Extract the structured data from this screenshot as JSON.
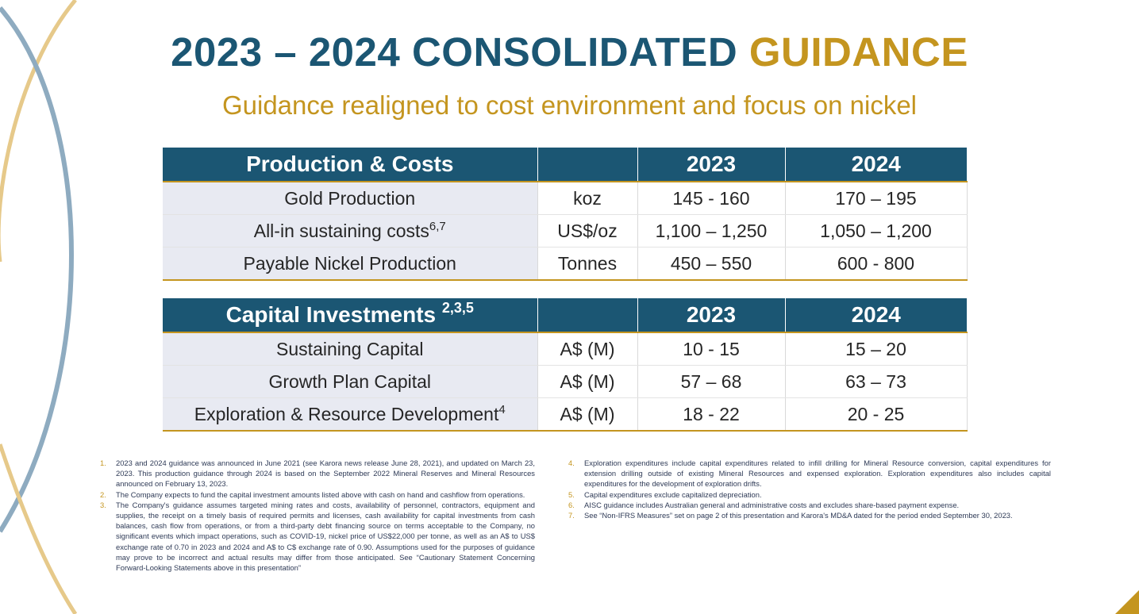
{
  "title": {
    "part1": "2023 – 2024 CONSOLIDATED ",
    "part2": "GUIDANCE"
  },
  "subtitle": "Guidance realigned to cost environment and focus on nickel",
  "production_table": {
    "header": {
      "label": "Production & Costs",
      "unit": "",
      "y2023": "2023",
      "y2024": "2024"
    },
    "rows": [
      {
        "label": "Gold Production",
        "sup": "",
        "unit": "koz",
        "y2023": "145 - 160",
        "y2024": "170 – 195"
      },
      {
        "label": "All-in sustaining costs",
        "sup": "6,7",
        "unit": "US$/oz",
        "y2023": "1,100 – 1,250",
        "y2024": "1,050 – 1,200"
      },
      {
        "label": "Payable Nickel Production",
        "sup": "",
        "unit": "Tonnes",
        "y2023": "450 – 550",
        "y2024": "600 - 800"
      }
    ]
  },
  "capital_table": {
    "header": {
      "label": "Capital Investments ",
      "sup": "2,3,5",
      "unit": "",
      "y2023": "2023",
      "y2024": "2024"
    },
    "rows": [
      {
        "label": "Sustaining Capital",
        "sup": "",
        "unit": "A$ (M)",
        "y2023": "10 - 15",
        "y2024": "15 – 20"
      },
      {
        "label": "Growth Plan Capital",
        "sup": "",
        "unit": "A$ (M)",
        "y2023": "57 – 68",
        "y2024": "63 – 73"
      },
      {
        "label": "Exploration & Resource Development",
        "sup": "4",
        "unit": "A$ (M)",
        "y2023": "18 - 22",
        "y2024": "20 - 25"
      }
    ]
  },
  "footnotes_left": [
    {
      "num": "1.",
      "text": "2023 and 2024 guidance was announced in June 2021 (see Karora news release June 28, 2021), and updated on March 23, 2023. This production guidance through 2024 is based on the September 2022 Mineral Reserves and Mineral Resources announced on February 13, 2023."
    },
    {
      "num": "2.",
      "text": "The Company expects to fund the capital investment amounts listed above with cash on hand and cashflow from operations."
    },
    {
      "num": "3.",
      "text": "The Company's guidance assumes targeted mining rates and costs, availability of personnel, contractors, equipment and supplies, the receipt on a timely basis of required permits and licenses, cash availability for capital investments from cash balances, cash flow from operations, or from a third-party debt financing source on terms acceptable to the Company, no significant events which impact operations, such as COVID-19, nickel price of US$22,000 per tonne, as well as an A$ to US$ exchange rate of 0.70 in 2023 and 2024 and A$ to C$ exchange rate of 0.90. Assumptions used for the purposes of guidance may prove to be incorrect and actual results may differ from those anticipated. See “Cautionary Statement Concerning Forward-Looking Statements above in this presentation”"
    }
  ],
  "footnotes_right": [
    {
      "num": "4.",
      "text": "Exploration expenditures include capital expenditures related to infill drilling for Mineral Resource conversion, capital expenditures for extension drilling outside of existing Mineral Resources and expensed exploration. Exploration expenditures also includes capital expenditures for the development of exploration drifts."
    },
    {
      "num": "5.",
      "text": "Capital expenditures exclude capitalized depreciation."
    },
    {
      "num": "6.",
      "text": "AISC guidance includes Australian general and administrative costs and excludes share-based payment expense."
    },
    {
      "num": "7.",
      "text": "See “Non-IFRS Measures” set on page 2 of this presentation and Karora's MD&A dated for the period ended September 30, 2023."
    }
  ],
  "colors": {
    "navy": "#1b5673",
    "gold": "#c4951f",
    "row_shade": "#e8eaf2"
  }
}
